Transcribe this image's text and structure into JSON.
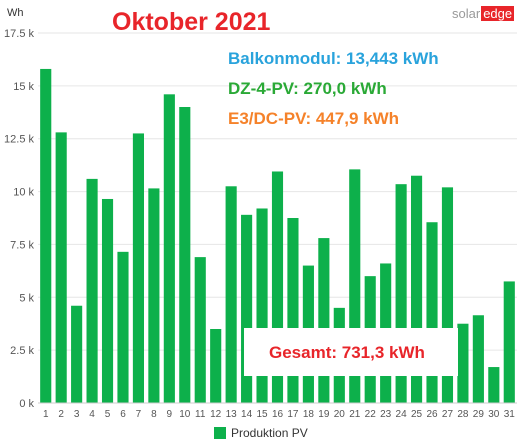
{
  "chart_data": {
    "type": "bar",
    "title": "Oktober 2021",
    "ylabel": "Wh",
    "xlabel": "",
    "ylim": [
      0,
      17500
    ],
    "grid": true,
    "legend_placement": "bottom",
    "categories": [
      "1",
      "2",
      "3",
      "4",
      "5",
      "6",
      "7",
      "8",
      "9",
      "10",
      "11",
      "12",
      "13",
      "14",
      "15",
      "16",
      "17",
      "18",
      "19",
      "20",
      "21",
      "22",
      "23",
      "24",
      "25",
      "26",
      "27",
      "28",
      "29",
      "30",
      "31"
    ],
    "y_ticks": [
      0,
      2500,
      5000,
      7500,
      10000,
      12500,
      15000,
      17500
    ],
    "y_tick_labels": [
      "0 k",
      "2.5 k",
      "5 k",
      "7.5 k",
      "10 k",
      "12.5 k",
      "15 k",
      "17.5 k"
    ],
    "series": [
      {
        "name": "Produktion PV",
        "color": "#0db04b",
        "values": [
          15800,
          12800,
          4600,
          10600,
          9650,
          7150,
          12750,
          10150,
          14600,
          14000,
          6900,
          3500,
          10250,
          8900,
          9200,
          10950,
          8750,
          6500,
          7800,
          4500,
          11050,
          6000,
          6600,
          10350,
          10750,
          8550,
          10200,
          3750,
          4150,
          1700,
          5750
        ]
      }
    ],
    "annotations": [
      {
        "text": "Balkonmodul: 13,443 kWh",
        "color": "#29a3dc"
      },
      {
        "text": "DZ-4-PV: 270,0 kWh",
        "color": "#2aa936"
      },
      {
        "text": "E3/DC-PV: 447,9 kWh",
        "color": "#f5822a"
      },
      {
        "text": "Gesamt: 731,3 kWh",
        "color": "#e8252a"
      }
    ]
  },
  "logo": {
    "part1": "solar",
    "part2": "edge"
  }
}
